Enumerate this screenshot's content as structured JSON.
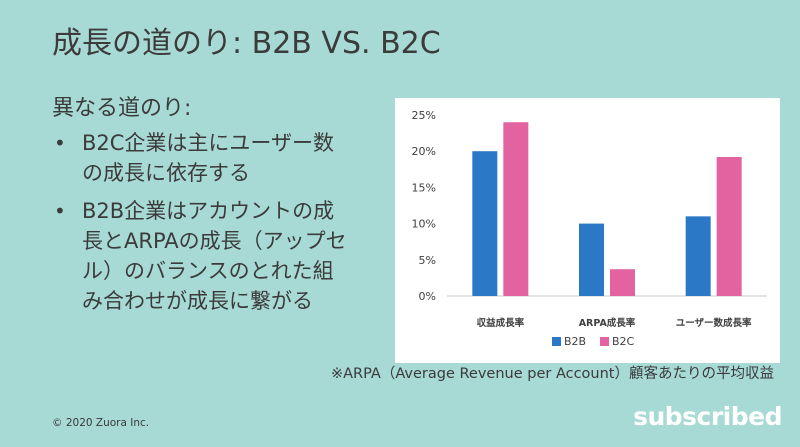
{
  "slide": {
    "title": "成長の道のり: B2B VS. B2C",
    "subhead": "異なる道のり:",
    "bullets": [
      "B2C企業は主にユーザー数の成長に依存する",
      "B2B企業はアカウントの成長とARPAの成長（アップセル）のバランスのとれた組み合わせが成長に繋がる"
    ],
    "footnote": "※ARPA（Average Revenue per Account）顧客あたりの平均収益",
    "copyright": "© 2020 Zuora Inc.",
    "logo_text": "subscribed"
  },
  "chart_data": {
    "type": "bar",
    "categories": [
      "収益成長率",
      "ARPA成長率",
      "ユーザー数成長率"
    ],
    "series": [
      {
        "name": "B2B",
        "values": [
          20,
          10,
          11
        ],
        "color": "#2a78c6"
      },
      {
        "name": "B2C",
        "values": [
          24,
          3.7,
          19.2
        ],
        "color": "#e2639f"
      }
    ],
    "ylim": [
      0,
      25
    ],
    "yticks": [
      0,
      5,
      10,
      15,
      20,
      25
    ],
    "ytick_labels": [
      "0%",
      "5%",
      "10%",
      "15%",
      "20%",
      "25%"
    ],
    "legend_position": "bottom",
    "grid": false,
    "axis_color": "#c8c8c8",
    "background": "#ffffff"
  }
}
